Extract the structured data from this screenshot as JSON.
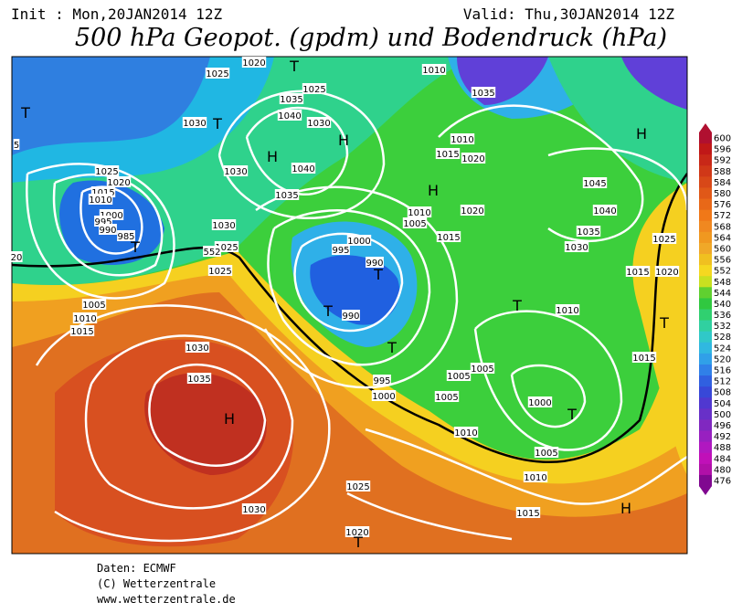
{
  "header": {
    "init": "Init : Mon,20JAN2014 12Z",
    "valid": "Valid: Thu,30JAN2014 12Z",
    "title": "500 hPa Geopot. (gpdm) und Bodendruck (hPa)"
  },
  "footer": [
    "Daten: ECMWF",
    "(C) Wetterzentrale",
    "www.wetterzentrale.de"
  ],
  "colorbar": {
    "labels": [
      "600",
      "596",
      "592",
      "588",
      "584",
      "580",
      "576",
      "572",
      "568",
      "564",
      "560",
      "556",
      "552",
      "548",
      "544",
      "540",
      "536",
      "532",
      "528",
      "524",
      "520",
      "516",
      "512",
      "508",
      "504",
      "500",
      "496",
      "492",
      "488",
      "484",
      "480",
      "476"
    ],
    "colors": [
      "#b01030",
      "#c01818",
      "#c82818",
      "#d03818",
      "#d84818",
      "#e05818",
      "#e86818",
      "#f07818",
      "#f08820",
      "#f09820",
      "#f0a828",
      "#f0c020",
      "#f5d820",
      "#c8e020",
      "#60d030",
      "#30c840",
      "#30d070",
      "#30d0a0",
      "#30c8c8",
      "#30b8e0",
      "#30a0e8",
      "#3080e8",
      "#3060e0",
      "#3848d8",
      "#5038d0",
      "#6830c8",
      "#8028c0",
      "#9820c0",
      "#b018c0",
      "#c010b8",
      "#b010a8",
      "#800890"
    ]
  },
  "map_labels": [
    "1025",
    "1020",
    "T",
    "1010",
    "1035",
    "T",
    "1025",
    "1035",
    "1040",
    "1030",
    "T",
    "1030",
    "H",
    "5",
    "1030",
    "1040",
    "H",
    "1015",
    "1010",
    "1020",
    "H",
    "1025",
    "1020",
    "1015",
    "1010",
    "1035",
    "H",
    "1045",
    "1000",
    "995",
    "990",
    "985",
    "T",
    "1030",
    "1010",
    "1005",
    "1020",
    "1040",
    "1025",
    "1035",
    "995",
    "1000",
    "1015",
    "1030",
    "1025",
    "20",
    "990",
    "T",
    "1025",
    "1015",
    "1020",
    "1005",
    "T",
    "990",
    "T",
    "1010",
    "1010",
    "1015",
    "T",
    "T",
    "1015",
    "1030",
    "1035",
    "995",
    "1005",
    "1005",
    "1000",
    "1005",
    "H",
    "1000",
    "T",
    "1010",
    "1005",
    "1010",
    "1025",
    "1030",
    "1015",
    "H",
    "1020",
    "T",
    "552"
  ]
}
